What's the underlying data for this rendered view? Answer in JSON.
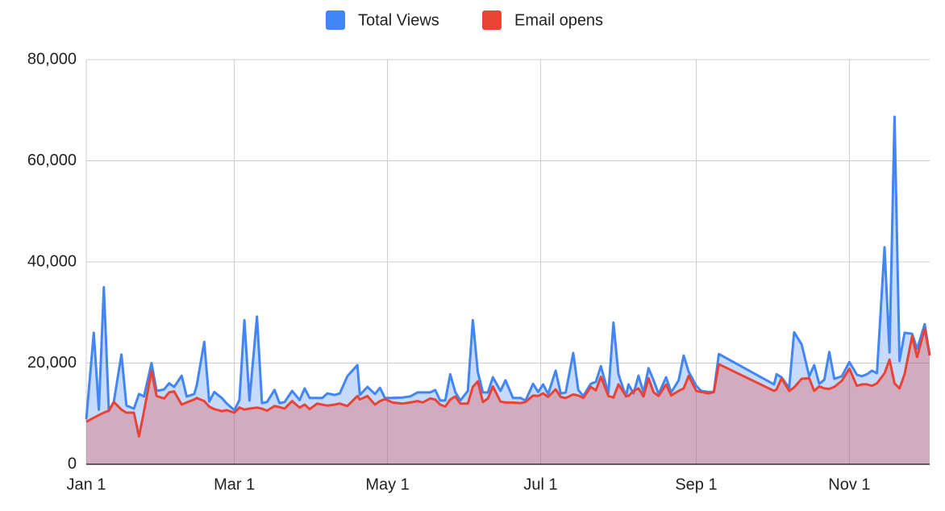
{
  "chart_data": {
    "type": "area",
    "legend": "top",
    "grid": true,
    "x": [
      0,
      3,
      5,
      7,
      9,
      11,
      14,
      16,
      19,
      21,
      23,
      26,
      28,
      31,
      33,
      35,
      38,
      40,
      43,
      44,
      47,
      49,
      51,
      54,
      56,
      59,
      61,
      63,
      65,
      68,
      70,
      72,
      75,
      77,
      79,
      82,
      85,
      87,
      89,
      92,
      94,
      96,
      99,
      101,
      104,
      108,
      109,
      112,
      115,
      117,
      119,
      122,
      126,
      129,
      132,
      134,
      137,
      139,
      141,
      143,
      145,
      147,
      149,
      152,
      154,
      156,
      158,
      160,
      162,
      165,
      167,
      170,
      173,
      175,
      178,
      180,
      182,
      184,
      187,
      189,
      191,
      194,
      196,
      198,
      201,
      203,
      205,
      208,
      210,
      212,
      215,
      216,
      218,
      220,
      222,
      224,
      226,
      228,
      231,
      233,
      236,
      238,
      240,
      243,
      245,
      248,
      250,
      252,
      274,
      275,
      277,
      280,
      282,
      285,
      288,
      290,
      292,
      294,
      296,
      298,
      301,
      304,
      307,
      309,
      311,
      313,
      315,
      318,
      320,
      322,
      324,
      326,
      329,
      331,
      334,
      336
    ],
    "series": [
      {
        "name": "Total Views",
        "color": "#4285f4",
        "values": [
          8900,
          26000,
          10800,
          35000,
          10500,
          12400,
          21700,
          11600,
          11000,
          13900,
          13400,
          20000,
          14500,
          14800,
          16000,
          15300,
          17500,
          13400,
          13900,
          15600,
          24200,
          12400,
          14300,
          13100,
          12000,
          10700,
          12700,
          28500,
          12600,
          29200,
          12100,
          12300,
          14700,
          12100,
          12300,
          14500,
          12700,
          15000,
          13100,
          13100,
          13100,
          14000,
          13700,
          14000,
          17400,
          19600,
          13700,
          15300,
          13900,
          15100,
          13100,
          13100,
          13200,
          13400,
          14200,
          14200,
          14200,
          14700,
          12600,
          12600,
          17800,
          14300,
          12600,
          14500,
          28500,
          18200,
          14200,
          14200,
          17200,
          14500,
          16600,
          13100,
          13100,
          12600,
          15900,
          14300,
          15800,
          13900,
          18500,
          14000,
          14200,
          22000,
          14700,
          13500,
          15900,
          16300,
          19400,
          14000,
          28000,
          17800,
          13400,
          15800,
          14000,
          17500,
          14200,
          19000,
          16600,
          13900,
          17200,
          14200,
          16600,
          21500,
          18300,
          15500,
          14500,
          14300,
          14300,
          21800,
          15800,
          17800,
          17200,
          15100,
          26100,
          23700,
          17400,
          19600,
          15900,
          16700,
          22200,
          16900,
          17400,
          20200,
          17700,
          17400,
          17800,
          18500,
          18000,
          42900,
          22100,
          68700,
          20400,
          26000,
          25800,
          22800,
          27700,
          21700
        ]
      },
      {
        "name": "Email opens",
        "color": "#ea4335",
        "values": [
          8400,
          9200,
          9700,
          10200,
          10600,
          12300,
          10800,
          10200,
          10200,
          5500,
          10500,
          18400,
          13500,
          13000,
          14200,
          14400,
          11800,
          12200,
          12800,
          13100,
          12500,
          11400,
          10900,
          10500,
          10700,
          10200,
          11200,
          10800,
          11000,
          11200,
          11000,
          10600,
          11500,
          11300,
          11000,
          12500,
          11200,
          11800,
          10900,
          12000,
          11800,
          11600,
          11800,
          12000,
          11500,
          13500,
          12800,
          13500,
          11800,
          12500,
          12900,
          12200,
          12000,
          12200,
          12500,
          12200,
          13000,
          12800,
          11800,
          11400,
          12800,
          13400,
          12000,
          12000,
          15300,
          16400,
          12300,
          13000,
          15400,
          12400,
          12200,
          12200,
          12100,
          12300,
          13600,
          13500,
          14000,
          13300,
          14800,
          13300,
          13100,
          13800,
          13600,
          13100,
          15300,
          14600,
          17300,
          13500,
          13200,
          15800,
          13500,
          13500,
          14500,
          15000,
          13400,
          17000,
          14200,
          13500,
          15800,
          13600,
          14500,
          15000,
          17500,
          14500,
          14300,
          14000,
          14300,
          19800,
          14500,
          14800,
          17000,
          14500,
          15200,
          16900,
          17000,
          14500,
          15400,
          15000,
          14900,
          15300,
          16500,
          18900,
          15500,
          15800,
          15800,
          15500,
          16000,
          18000,
          20700,
          16000,
          15000,
          17800,
          25300,
          21200,
          26800,
          21500
        ]
      }
    ],
    "xlim": [
      0,
      336
    ],
    "xticks": [
      {
        "value": 0,
        "label": "Jan 1"
      },
      {
        "value": 59,
        "label": "Mar 1"
      },
      {
        "value": 120,
        "label": "May 1"
      },
      {
        "value": 181,
        "label": "Jul 1"
      },
      {
        "value": 243,
        "label": "Sep 1"
      },
      {
        "value": 304,
        "label": "Nov 1"
      }
    ],
    "ylim": [
      0,
      80000
    ],
    "yticks": [
      0,
      {
        "value": 20000,
        "label": "20,000"
      },
      {
        "value": 40000,
        "label": "40,000"
      },
      {
        "value": 60000,
        "label": "60,000"
      },
      {
        "value": 80000,
        "label": "80,000"
      }
    ]
  }
}
